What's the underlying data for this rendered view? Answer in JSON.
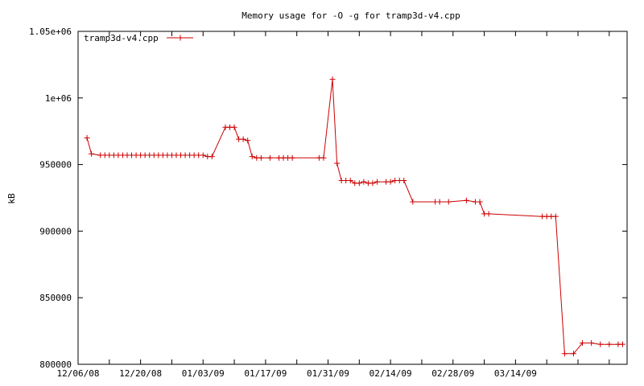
{
  "chart_data": {
    "type": "line",
    "title": "Memory usage for -O -g for tramp3d-v4.cpp",
    "xlabel": "",
    "ylabel": "kB",
    "xlim": [
      "2008-12-06",
      "2009-04-08"
    ],
    "ylim": [
      800000,
      1050000
    ],
    "x_ticks": [
      "12/06/08",
      "12/20/08",
      "01/03/09",
      "01/17/09",
      "01/31/09",
      "02/14/09",
      "02/28/09",
      "03/14/09"
    ],
    "y_ticks": [
      "800000",
      "850000",
      "900000",
      "950000",
      "1e+06",
      "1.05e+06"
    ],
    "grid": false,
    "legend_position": "top-left",
    "colors": {
      "series": "#cc0000",
      "axis": "#000000",
      "background": "#ffffff"
    },
    "series": [
      {
        "name": "tramp3d-v4.cpp",
        "x": [
          "2008-12-08",
          "2008-12-09",
          "2008-12-11",
          "2008-12-12",
          "2008-12-13",
          "2008-12-14",
          "2008-12-15",
          "2008-12-16",
          "2008-12-17",
          "2008-12-18",
          "2008-12-19",
          "2008-12-20",
          "2008-12-21",
          "2008-12-22",
          "2008-12-23",
          "2008-12-24",
          "2008-12-25",
          "2008-12-26",
          "2008-12-27",
          "2008-12-28",
          "2008-12-29",
          "2008-12-30",
          "2008-12-31",
          "2009-01-01",
          "2009-01-02",
          "2009-01-03",
          "2009-01-04",
          "2009-01-05",
          "2009-01-08",
          "2009-01-09",
          "2009-01-10",
          "2009-01-11",
          "2009-01-12",
          "2009-01-13",
          "2009-01-14",
          "2009-01-15",
          "2009-01-16",
          "2009-01-18",
          "2009-01-20",
          "2009-01-21",
          "2009-01-22",
          "2009-01-23",
          "2009-01-29",
          "2009-01-30",
          "2009-02-01",
          "2009-02-02",
          "2009-02-03",
          "2009-02-04",
          "2009-02-05",
          "2009-02-06",
          "2009-02-07",
          "2009-02-08",
          "2009-02-09",
          "2009-02-10",
          "2009-02-11",
          "2009-02-13",
          "2009-02-14",
          "2009-02-15",
          "2009-02-16",
          "2009-02-17",
          "2009-02-19",
          "2009-02-24",
          "2009-02-25",
          "2009-02-27",
          "2009-03-03",
          "2009-03-05",
          "2009-03-06",
          "2009-03-07",
          "2009-03-08",
          "2009-03-20",
          "2009-03-21",
          "2009-03-22",
          "2009-03-23",
          "2009-03-25",
          "2009-03-27",
          "2009-03-29",
          "2009-03-31",
          "2009-04-02",
          "2009-04-04",
          "2009-04-06",
          "2009-04-07"
        ],
        "y": [
          970000,
          958000,
          957000,
          957000,
          957000,
          957000,
          957000,
          957000,
          957000,
          957000,
          957000,
          957000,
          957000,
          957000,
          957000,
          957000,
          957000,
          957000,
          957000,
          957000,
          957000,
          957000,
          957000,
          957000,
          957000,
          957000,
          956000,
          956000,
          978000,
          978000,
          978000,
          969000,
          969000,
          968000,
          956000,
          955000,
          955000,
          955000,
          955000,
          955000,
          955000,
          955000,
          955000,
          955000,
          1014000,
          951000,
          938000,
          938000,
          938000,
          936000,
          936000,
          937000,
          936000,
          936000,
          937000,
          937000,
          937000,
          938000,
          938000,
          938000,
          922000,
          922000,
          922000,
          922000,
          923000,
          922000,
          922000,
          913000,
          913000,
          911000,
          911000,
          911000,
          911000,
          808000,
          808000,
          816000,
          816000,
          815000,
          815000,
          815000,
          815000
        ]
      }
    ]
  }
}
